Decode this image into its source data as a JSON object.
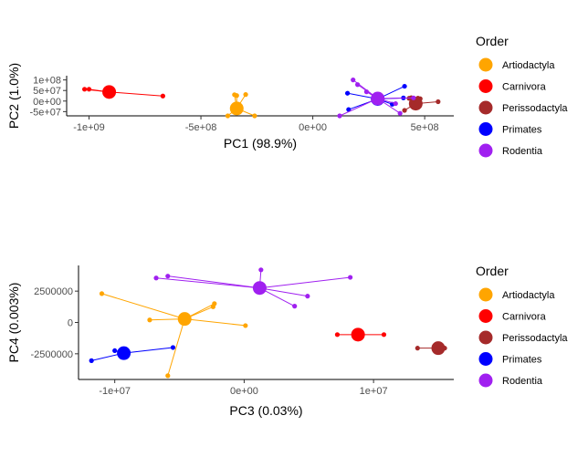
{
  "legend": {
    "title": "Order",
    "entries": [
      {
        "name": "Artiodactyla",
        "color": "#FFA500"
      },
      {
        "name": "Carnivora",
        "color": "#FF0000"
      },
      {
        "name": "Perissodactyla",
        "color": "#A52A2A"
      },
      {
        "name": "Primates",
        "color": "#0000FF"
      },
      {
        "name": "Rodentia",
        "color": "#A020F0"
      }
    ]
  },
  "chart_data": [
    {
      "type": "scatter",
      "xlabel": "PC1 (98.9%)",
      "ylabel": "PC2 (1.0%)",
      "xlim": [
        -1100000000.0,
        630000000.0
      ],
      "ylim": [
        -70000000.0,
        120000000.0
      ],
      "xticks": [
        -1000000000.0,
        -500000000.0,
        0,
        500000000.0
      ],
      "xtick_labels": [
        "-1e+09",
        "-5e+08",
        "0e+00",
        "5e+08"
      ],
      "yticks": [
        -50000000.0,
        0,
        50000000.0,
        100000000.0
      ],
      "ytick_labels": [
        "-5e+07",
        "0e+00",
        "5e+07",
        "1e+08"
      ],
      "grid": false,
      "legend_position": "right",
      "groups": [
        {
          "name": "Artiodactyla",
          "color": "#FFA500",
          "centroid": [
            -340000000.0,
            -35000000.0
          ],
          "points": [
            [
              -340000000.0,
              26000000.0
            ],
            [
              -350000000.0,
              30000000.0
            ],
            [
              -300000000.0,
              31000000.0
            ],
            [
              -380000000.0,
              -70000000.0
            ],
            [
              -260000000.0,
              -70000000.0
            ]
          ]
        },
        {
          "name": "Carnivora",
          "color": "#FF0000",
          "centroid": [
            -910000000.0,
            43000000.0
          ],
          "points": [
            [
              -1020000000.0,
              56000000.0
            ],
            [
              -1000000000.0,
              56000000.0
            ],
            [
              -670000000.0,
              24000000.0
            ]
          ]
        },
        {
          "name": "Perissodactyla",
          "color": "#A52A2A",
          "centroid": [
            460000000.0,
            -12000000.0
          ],
          "points": [
            [
              430000000.0,
              13000000.0
            ],
            [
              440000000.0,
              16000000.0
            ],
            [
              470000000.0,
              14000000.0
            ],
            [
              480000000.0,
              11000000.0
            ],
            [
              560000000.0,
              -3000000.0
            ],
            [
              410000000.0,
              -44000000.0
            ]
          ]
        },
        {
          "name": "Primates",
          "color": "#0000FF",
          "centroid": [
            290000000.0,
            10000000.0
          ],
          "points": [
            [
              155000000.0,
              37000000.0
            ],
            [
              410000000.0,
              70000000.0
            ],
            [
              405000000.0,
              15000000.0
            ],
            [
              355000000.0,
              -15000000.0
            ],
            [
              160000000.0,
              -40000000.0
            ]
          ]
        },
        {
          "name": "Rodentia",
          "color": "#A020F0",
          "centroid": [
            290000000.0,
            12000000.0
          ],
          "points": [
            [
              180000000.0,
              100000000.0
            ],
            [
              200000000.0,
              78000000.0
            ],
            [
              240000000.0,
              44000000.0
            ],
            [
              370000000.0,
              -12000000.0
            ],
            [
              390000000.0,
              -58000000.0
            ],
            [
              450000000.0,
              15000000.0
            ],
            [
              120000000.0,
              -70000000.0
            ]
          ]
        }
      ]
    },
    {
      "type": "scatter",
      "xlabel": "PC3 (0.03%)",
      "ylabel": "PC4 (0.003%)",
      "xlim": [
        -12800000.0,
        16200000.0
      ],
      "ylim": [
        -4550000.0,
        4550000.0
      ],
      "xticks": [
        -10000000.0,
        0,
        10000000.0
      ],
      "xtick_labels": [
        "-1e+07",
        "0e+00",
        "1e+07"
      ],
      "yticks": [
        -2500000,
        0,
        2500000
      ],
      "ytick_labels": [
        "-2500000",
        "0",
        "2500000"
      ],
      "grid": false,
      "legend_position": "right",
      "groups": [
        {
          "name": "Artiodactyla",
          "color": "#FFA500",
          "centroid": [
            -4600000.0,
            280000.0
          ],
          "points": [
            [
              -11000000.0,
              2300000.0
            ],
            [
              -7300000.0,
              200000.0
            ],
            [
              -2300000.0,
              1500000.0
            ],
            [
              -2400000.0,
              1250000.0
            ],
            [
              100000.0,
              -250000.0
            ],
            [
              -5900000.0,
              -4250000.0
            ]
          ]
        },
        {
          "name": "Carnivora",
          "color": "#FF0000",
          "centroid": [
            8800000.0,
            -970000.0
          ],
          "points": [
            [
              7200000.0,
              -970000.0
            ],
            [
              10800000.0,
              -970000.0
            ]
          ]
        },
        {
          "name": "Perissodactyla",
          "color": "#A52A2A",
          "centroid": [
            15000000.0,
            -2050000.0
          ],
          "points": [
            [
              13400000.0,
              -2050000.0
            ],
            [
              15500000.0,
              -2050000.0
            ]
          ]
        },
        {
          "name": "Primates",
          "color": "#0000FF",
          "centroid": [
            -9300000.0,
            -2450000.0
          ],
          "points": [
            [
              -11800000.0,
              -3050000.0
            ],
            [
              -10000000.0,
              -2250000.0
            ],
            [
              -5500000.0,
              -2000000.0
            ]
          ]
        },
        {
          "name": "Rodentia",
          "color": "#A020F0",
          "centroid": [
            1200000.0,
            2750000.0
          ],
          "points": [
            [
              -6800000.0,
              3550000.0
            ],
            [
              -5900000.0,
              3700000.0
            ],
            [
              1300000.0,
              4200000.0
            ],
            [
              4900000.0,
              2100000.0
            ],
            [
              3900000.0,
              1300000.0
            ],
            [
              8200000.0,
              3600000.0
            ]
          ]
        }
      ]
    }
  ]
}
